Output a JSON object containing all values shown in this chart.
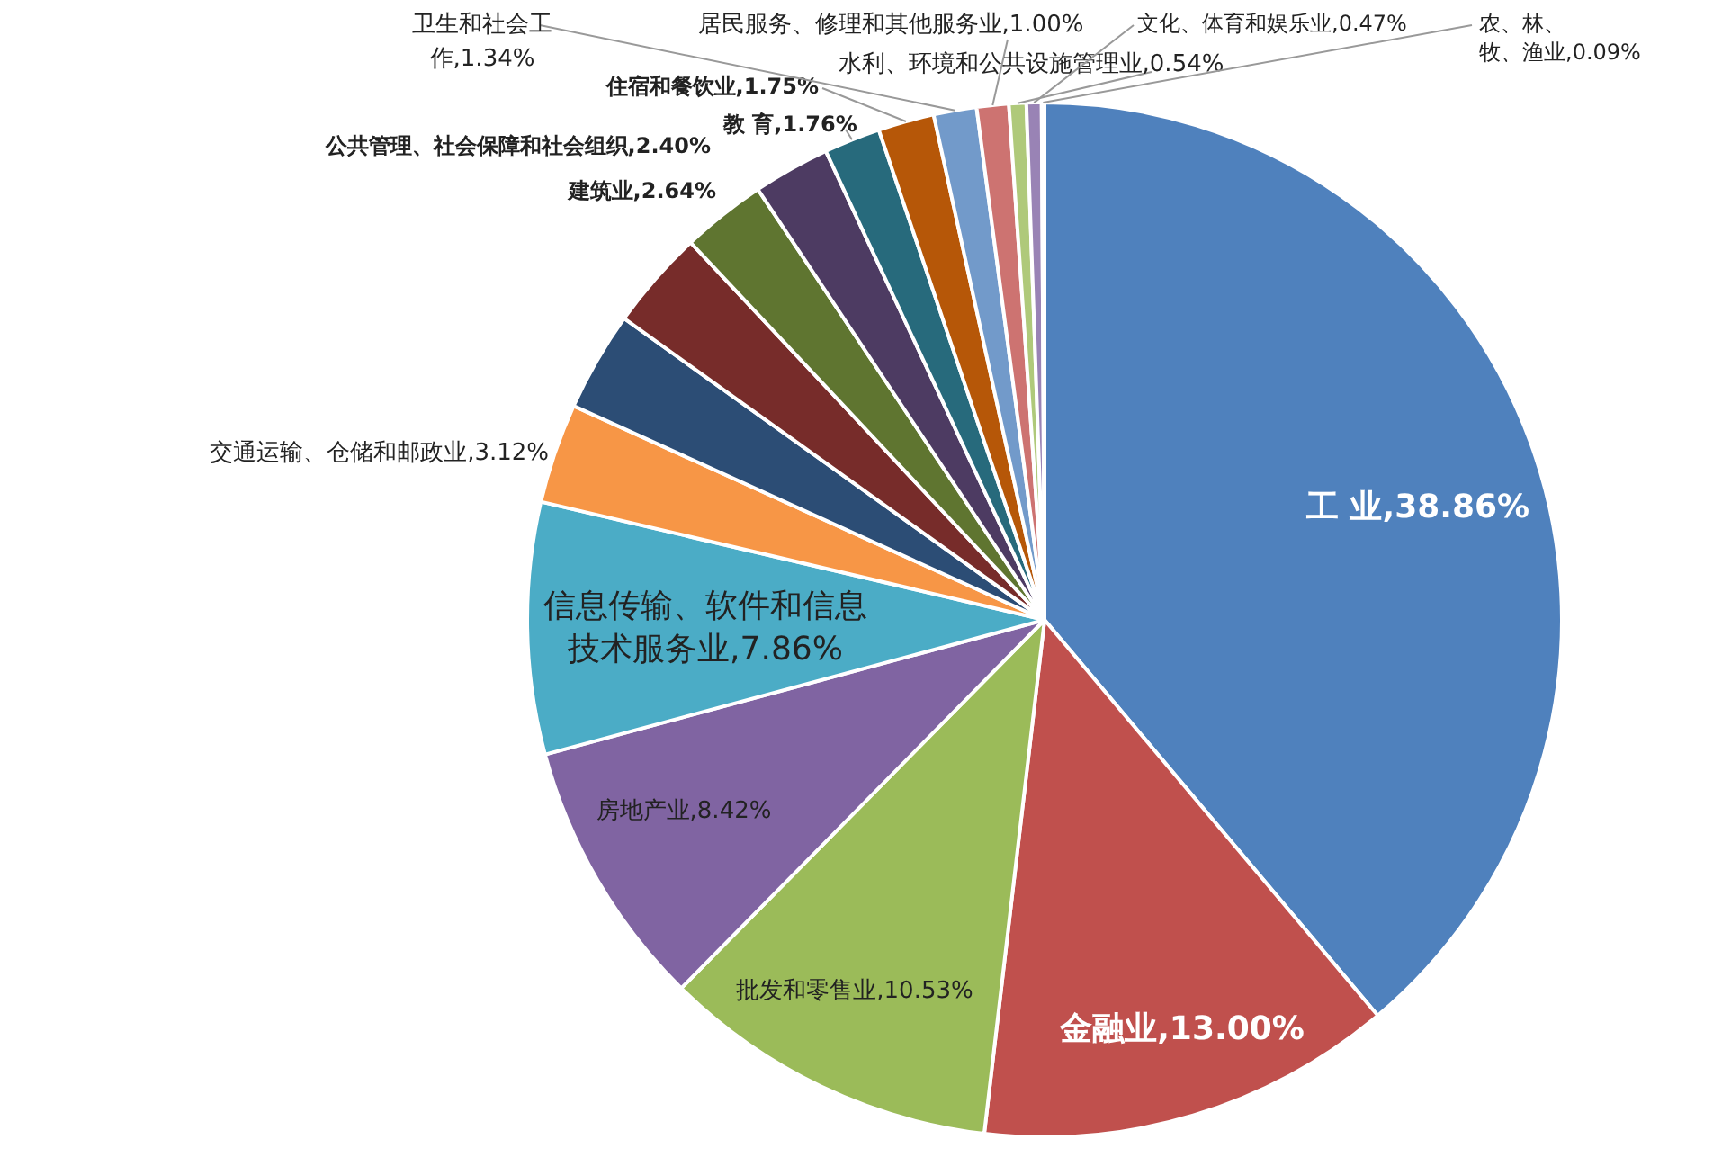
{
  "chart_data": {
    "type": "pie",
    "categories": [
      "工 业",
      "金融业",
      "批发和零售业",
      "房地产业",
      "信息传输、软件和信息技术服务业",
      "交通运输、仓储和邮政业",
      null,
      null,
      "建筑业",
      "公共管理、社会保障和社会组织",
      "教 育",
      "住宿和餐饮业",
      "卫生和社会工作",
      "居民服务、修理和其他服务业",
      "水利、环境和公共设施管理业",
      "文化、体育和娱乐业",
      "农、林、牧、渔业"
    ],
    "values": [
      38.86,
      13.0,
      10.53,
      8.42,
      7.86,
      3.12,
      3.11,
      3.11,
      2.64,
      2.4,
      1.76,
      1.75,
      1.34,
      1.0,
      0.54,
      0.47,
      0.09
    ],
    "value_labels": [
      "38.86%",
      "13.00%",
      "10.53%",
      "8.42%",
      "7.86%",
      "3.12%",
      null,
      null,
      "2.64%",
      "2.40%",
      "1.76%",
      "1.75%",
      "1.34%",
      "1.00%",
      "0.54%",
      "0.47%",
      "0.09%"
    ],
    "colors": [
      "#4f81bd",
      "#c0504d",
      "#9bbb59",
      "#8064a2",
      "#4bacc6",
      "#f79646",
      "#2c4d75",
      "#772c2a",
      "#5f7530",
      "#4d3b62",
      "#276a7c",
      "#b65708",
      "#729aca",
      "#cd7371",
      "#afc97a",
      "#9983b5",
      "#8eb4e3"
    ],
    "legend": false
  }
}
